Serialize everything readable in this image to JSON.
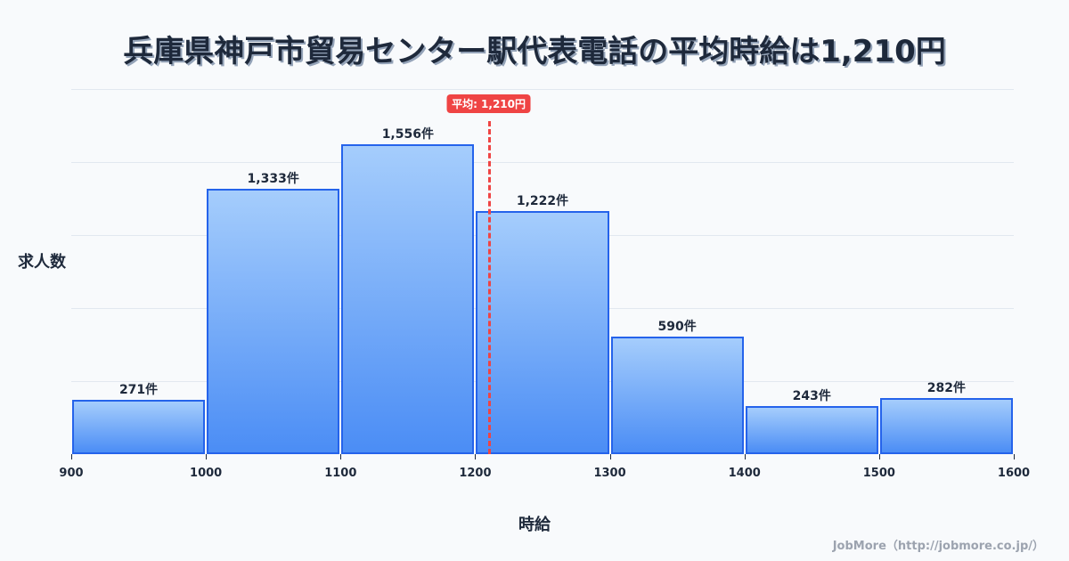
{
  "title": "兵庫県神戸市貿易センター駅代表電話の平均時給は1,210円",
  "axis": {
    "ylabel": "求人数",
    "xlabel": "時給"
  },
  "credit": "JobMore（http://jobmore.co.jp/）",
  "average": {
    "value": 1210,
    "label": "平均: 1,210円",
    "color": "#ef4444"
  },
  "colors": {
    "bar_border": "#2563eb",
    "bar_top": "#a5cdfc",
    "bar_bottom": "#4b8df5"
  },
  "chart_data": {
    "type": "bar",
    "title": "兵庫県神戸市貿易センター駅代表電話の平均時給は1,210円",
    "xlabel": "時給",
    "ylabel": "求人数",
    "bins": [
      [
        900,
        1000
      ],
      [
        1000,
        1100
      ],
      [
        1100,
        1200
      ],
      [
        1200,
        1300
      ],
      [
        1300,
        1400
      ],
      [
        1400,
        1500
      ],
      [
        1500,
        1600
      ]
    ],
    "categories": [
      "900-1000",
      "1000-1100",
      "1100-1200",
      "1200-1300",
      "1300-1400",
      "1400-1500",
      "1500-1600"
    ],
    "values": [
      271,
      1333,
      1556,
      1222,
      590,
      243,
      282
    ],
    "value_labels": [
      "271件",
      "1,333件",
      "1,556件",
      "1,222件",
      "590件",
      "243件",
      "282件"
    ],
    "x_ticks": [
      "900",
      "1000",
      "1100",
      "1200",
      "1300",
      "1400",
      "1500",
      "1600"
    ],
    "xlim": [
      900,
      1600
    ],
    "ylim": [
      0,
      1833
    ],
    "grid": true,
    "annotations": [
      {
        "type": "vline",
        "x": 1210,
        "label": "平均: 1,210円"
      }
    ]
  }
}
